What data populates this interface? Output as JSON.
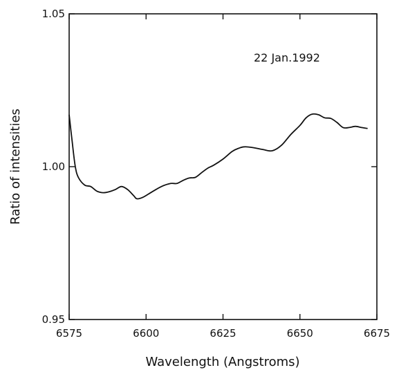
{
  "chart_data": {
    "type": "line",
    "title": "",
    "xlabel": "Wavelength (Angstroms)",
    "ylabel": "Ratio of intensities",
    "annotation": "22 Jan.1992",
    "xlim": [
      6575,
      6675
    ],
    "ylim": [
      0.95,
      1.05
    ],
    "x_ticks": [
      6575,
      6600,
      6625,
      6650,
      6675
    ],
    "x_tick_labels": [
      "6575",
      "6600",
      "6625",
      "6650",
      "6675"
    ],
    "y_ticks": [
      0.95,
      1.0,
      1.05
    ],
    "y_tick_labels": [
      "0.95",
      "1.00",
      "1.05"
    ],
    "grid": false,
    "series": [
      {
        "x": [
          6575,
          6576,
          6577,
          6578,
          6580,
          6582,
          6584,
          6586,
          6588,
          6590,
          6592,
          6594,
          6596,
          6597,
          6599,
          6602,
          6605,
          6608,
          6610,
          6612,
          6614,
          6616,
          6618,
          6620,
          6622,
          6625,
          6628,
          6630,
          6632,
          6635,
          6638,
          6641,
          6644,
          6647,
          6650,
          6652,
          6654,
          6656,
          6658,
          6660,
          6662,
          6664,
          6666,
          6668,
          6670,
          6672
        ],
        "y": [
          1.017,
          1.008,
          1.0,
          0.9965,
          0.994,
          0.9935,
          0.992,
          0.9915,
          0.9918,
          0.9925,
          0.9935,
          0.9925,
          0.9905,
          0.9895,
          0.99,
          0.9918,
          0.9935,
          0.9945,
          0.9945,
          0.9955,
          0.9963,
          0.9965,
          0.998,
          0.9995,
          1.0005,
          1.0025,
          1.005,
          1.006,
          1.0065,
          1.0062,
          1.0056,
          1.0052,
          1.007,
          1.0105,
          1.0135,
          1.016,
          1.0172,
          1.017,
          1.016,
          1.0158,
          1.0145,
          1.0128,
          1.0128,
          1.0132,
          1.0128,
          1.0125
        ]
      }
    ]
  }
}
